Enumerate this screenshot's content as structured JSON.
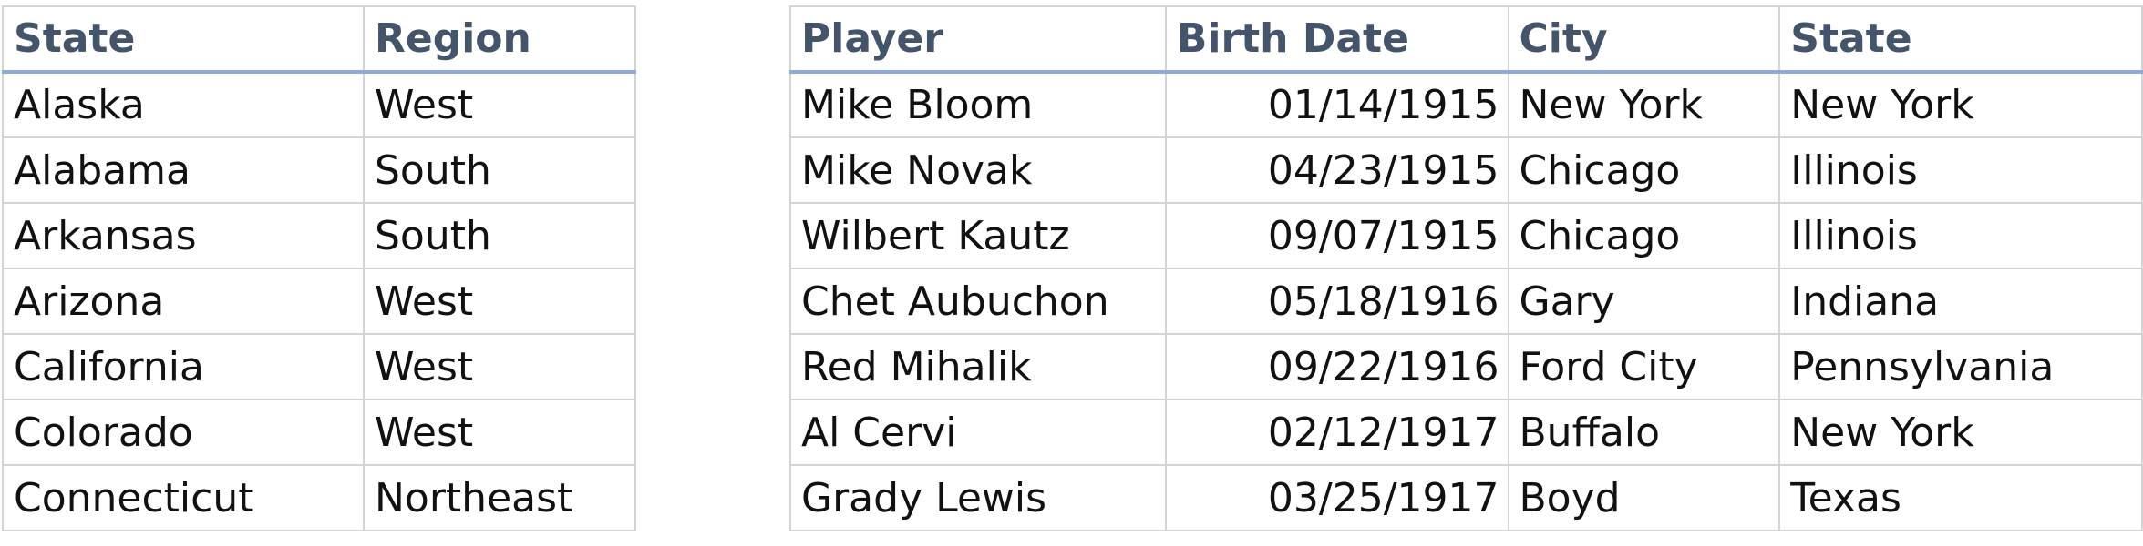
{
  "regions_table": {
    "headers": [
      "State",
      "Region"
    ],
    "rows": [
      [
        "Alaska",
        "West"
      ],
      [
        "Alabama",
        "South"
      ],
      [
        "Arkansas",
        "South"
      ],
      [
        "Arizona",
        "West"
      ],
      [
        "California",
        "West"
      ],
      [
        "Colorado",
        "West"
      ],
      [
        "Connecticut",
        "Northeast"
      ]
    ]
  },
  "players_table": {
    "headers": [
      "Player",
      "Birth Date",
      "City",
      "State"
    ],
    "rows": [
      [
        "Mike Bloom",
        "01/14/1915",
        "New York",
        "New York"
      ],
      [
        "Mike Novak",
        "04/23/1915",
        "Chicago",
        "Illinois"
      ],
      [
        "Wilbert Kautz",
        "09/07/1915",
        "Chicago",
        "Illinois"
      ],
      [
        "Chet Aubuchon",
        "05/18/1916",
        "Gary",
        "Indiana"
      ],
      [
        "Red Mihalik",
        "09/22/1916",
        "Ford City",
        "Pennsylvania"
      ],
      [
        "Al Cervi",
        "02/12/1917",
        "Buffalo",
        "New York"
      ],
      [
        "Grady Lewis",
        "03/25/1917",
        "Boyd",
        "Texas"
      ]
    ]
  },
  "colors": {
    "header_text": "#44546a",
    "header_underline": "#8eaadb",
    "gridline": "#d4d4d4",
    "cell_text": "#111111"
  }
}
